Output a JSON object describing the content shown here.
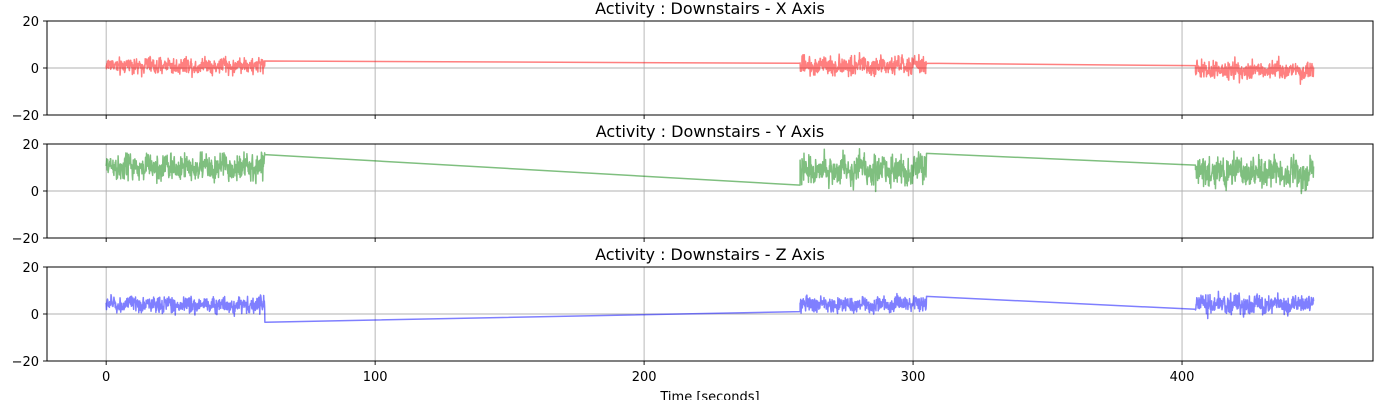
{
  "chart_data": [
    {
      "type": "line",
      "title": "Activity : Downstairs - X Axis",
      "xlabel": "",
      "ylabel": "",
      "xlim": [
        -22,
        471
      ],
      "ylim": [
        -20,
        20
      ],
      "yticks": [
        -20,
        0,
        20
      ],
      "xticks": [
        0,
        100,
        200,
        300,
        400
      ],
      "xtick_labels_visible": false,
      "grid": true,
      "color": "#ff0000",
      "alpha": 0.5,
      "segments": [
        {
          "x_start": 0,
          "x_end": 59,
          "center": 1,
          "amplitude": 3,
          "min": -5,
          "max": 6
        },
        {
          "x_start": 258,
          "x_end": 305,
          "center": 1,
          "amplitude": 3.5,
          "min": -4,
          "max": 8
        },
        {
          "x_start": 405,
          "x_end": 449,
          "center": -1,
          "amplitude": 3.5,
          "min": -9,
          "max": 5
        }
      ],
      "connectors": [
        {
          "x": [
            59,
            258
          ],
          "y": [
            3,
            2
          ]
        },
        {
          "x": [
            305,
            405
          ],
          "y": [
            2,
            1
          ]
        }
      ]
    },
    {
      "type": "line",
      "title": "Activity : Downstairs - Y Axis",
      "xlabel": "",
      "ylabel": "",
      "xlim": [
        -22,
        471
      ],
      "ylim": [
        -20,
        20
      ],
      "yticks": [
        -20,
        0,
        20
      ],
      "xticks": [
        0,
        100,
        200,
        300,
        400
      ],
      "xtick_labels_visible": false,
      "grid": true,
      "color": "#008000",
      "alpha": 0.5,
      "segments": [
        {
          "x_start": 0,
          "x_end": 59,
          "center": 10,
          "amplitude": 5,
          "min": 0,
          "max": 19
        },
        {
          "x_start": 258,
          "x_end": 305,
          "center": 9,
          "amplitude": 5.5,
          "min": -3,
          "max": 19
        },
        {
          "x_start": 405,
          "x_end": 449,
          "center": 8,
          "amplitude": 5.5,
          "min": -3,
          "max": 18
        }
      ],
      "connectors": [
        {
          "x": [
            59,
            258
          ],
          "y": [
            15.5,
            2.5
          ]
        },
        {
          "x": [
            305,
            405
          ],
          "y": [
            16,
            11
          ]
        }
      ]
    },
    {
      "type": "line",
      "title": "Activity : Downstairs - Z Axis",
      "xlabel": "Time [seconds]",
      "ylabel": "",
      "xlim": [
        -22,
        471
      ],
      "ylim": [
        -20,
        20
      ],
      "yticks": [
        -20,
        0,
        20
      ],
      "xticks": [
        0,
        100,
        200,
        300,
        400
      ],
      "xtick_labels_visible": true,
      "grid": true,
      "color": "#0000ff",
      "alpha": 0.5,
      "segments": [
        {
          "x_start": 0,
          "x_end": 59,
          "center": 4,
          "amplitude": 3,
          "min": -3,
          "max": 10
        },
        {
          "x_start": 258,
          "x_end": 305,
          "center": 4,
          "amplitude": 3,
          "min": -3,
          "max": 11
        },
        {
          "x_start": 405,
          "x_end": 449,
          "center": 4,
          "amplitude": 3.5,
          "min": -5,
          "max": 11
        }
      ],
      "connectors": [
        {
          "x": [
            59,
            258
          ],
          "y": [
            -3.5,
            1
          ]
        },
        {
          "x": [
            305,
            405
          ],
          "y": [
            7.5,
            2
          ]
        }
      ]
    }
  ]
}
